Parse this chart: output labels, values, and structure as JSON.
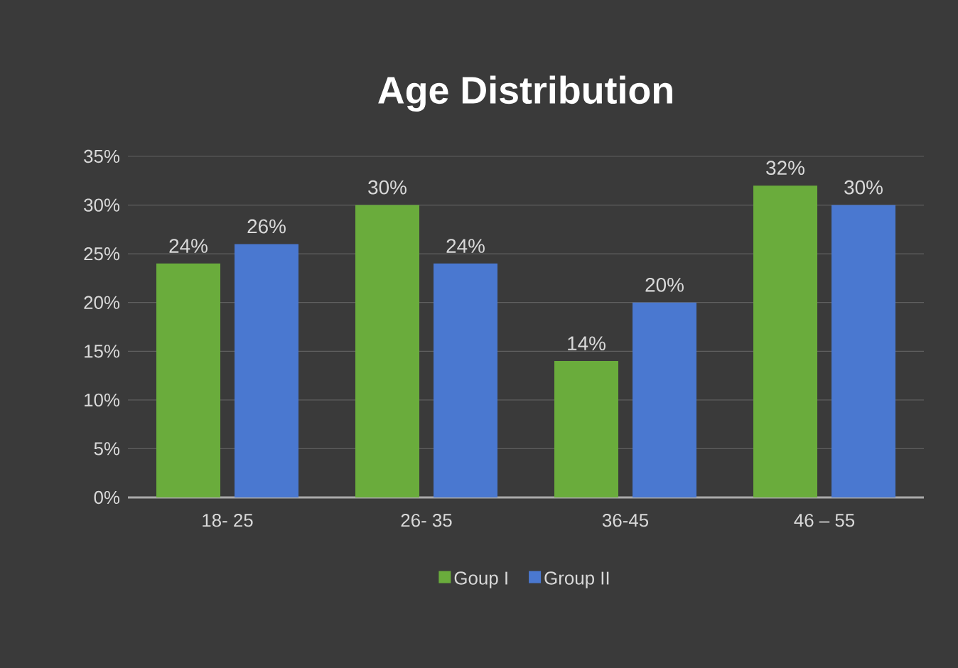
{
  "chart_data": {
    "type": "bar",
    "title": "Age Distribution",
    "categories": [
      "18- 25",
      "26- 35",
      "36-45",
      "46 – 55"
    ],
    "series": [
      {
        "name": "Goup I",
        "color": "#6aac3c",
        "values": [
          24,
          30,
          14,
          32
        ],
        "value_labels": [
          "24%",
          "30%",
          "14%",
          "32%"
        ]
      },
      {
        "name": "Group II",
        "color": "#4a78d0",
        "values": [
          26,
          24,
          20,
          30
        ],
        "value_labels": [
          "26%",
          "24%",
          "20%",
          "30%"
        ]
      }
    ],
    "ylim": [
      0,
      35
    ],
    "yticks": [
      {
        "value": 0,
        "label": "0%"
      },
      {
        "value": 5,
        "label": "5%"
      },
      {
        "value": 10,
        "label": "10%"
      },
      {
        "value": 15,
        "label": "15%"
      },
      {
        "value": 20,
        "label": "20%"
      },
      {
        "value": 25,
        "label": "25%"
      },
      {
        "value": 30,
        "label": "30%"
      },
      {
        "value": 35,
        "label": "35%"
      }
    ],
    "grid": "y",
    "legend": "bottom"
  }
}
